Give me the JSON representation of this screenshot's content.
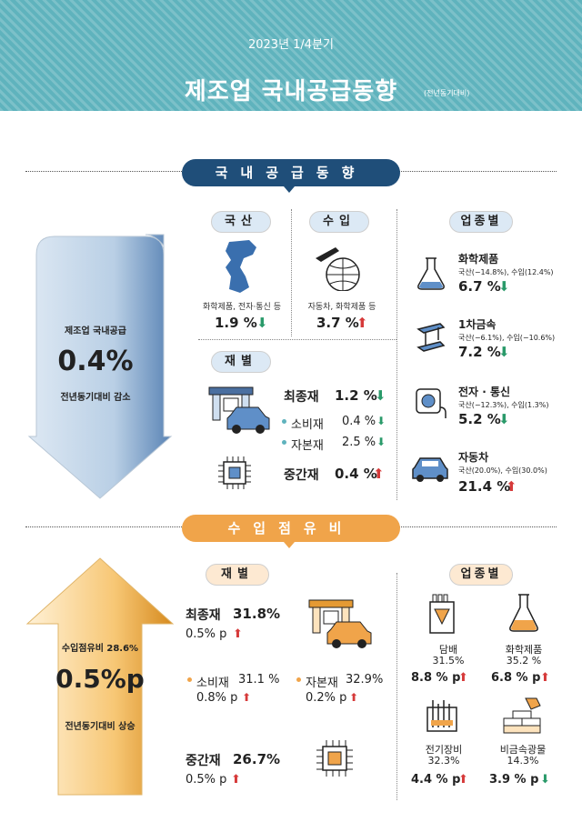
{
  "header": {
    "year": "2023년 1/4분기",
    "title": "제조업 국내공급동향",
    "subtitle": "(전년동기대비)"
  },
  "supply": {
    "banner": "국내공급동향",
    "arrow": {
      "label": "제조업 국내공급",
      "value": "0.4%",
      "note": "전년동기대비 감소"
    },
    "domestic": {
      "tag": "국산",
      "desc": "화학제품, 전자·통신 등",
      "value": "1.9 %"
    },
    "import": {
      "tag": "수입",
      "desc": "자동차, 화학제품 등",
      "value": "3.7 %"
    },
    "goods": {
      "tag": "재별",
      "final": {
        "label": "최종재",
        "value": "1.2 %"
      },
      "consumer": {
        "label": "소비재",
        "value": "0.4 %"
      },
      "capital": {
        "label": "자본재",
        "value": "2.5 %"
      },
      "intermediate": {
        "label": "중간재",
        "value": "0.4 %"
      }
    },
    "industry": {
      "tag": "업종별",
      "items": [
        {
          "name": "화학제품",
          "detail": "국산(−14.8%), 수입(12.4%)",
          "value": "6.7 %"
        },
        {
          "name": "1차금속",
          "detail": "국산(−6.1%), 수입(−10.6%)",
          "value": "7.2 %"
        },
        {
          "name": "전자 · 통신",
          "detail": "국산(−12.3%), 수입(1.3%)",
          "value": "5.2 %"
        },
        {
          "name": "자동차",
          "detail": "국산(20.0%), 수입(30.0%)",
          "value": "21.4 %"
        }
      ]
    }
  },
  "imports": {
    "banner": "수입점유비",
    "arrow": {
      "label": "수입점유비 28.6%",
      "value": "0.5%p",
      "note": "전년동기대비 상승"
    },
    "goods": {
      "tag": "재별",
      "final": {
        "label": "최종재",
        "share": "31.8%",
        "change": "0.5% p"
      },
      "consumer": {
        "label": "소비재",
        "share": "31.1 %",
        "change": "0.8% p"
      },
      "capital": {
        "label": "자본재",
        "share": "32.9%",
        "change": "0.2% p"
      },
      "intermediate": {
        "label": "중간재",
        "share": "26.7%",
        "change": "0.5% p"
      }
    },
    "industry": {
      "tag": "업종별",
      "items": [
        {
          "name": "담배",
          "share": "31.5%",
          "change": "8.8 % p"
        },
        {
          "name": "화학제품",
          "share": "35.2 %",
          "change": "6.8 % p"
        },
        {
          "name": "전기장비",
          "share": "32.3%",
          "change": "4.4 % p"
        },
        {
          "name": "비금속광물",
          "share": "14.3%",
          "change": "3.9 % p"
        }
      ]
    }
  },
  "colors": {
    "teal": "#5fb3bd",
    "navy": "#1f4e79",
    "orange": "#f0a44a",
    "up": "#d63a3a",
    "down": "#2a9a6a"
  }
}
